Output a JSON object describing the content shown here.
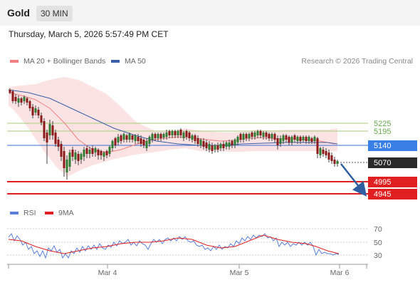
{
  "header": {
    "title": "Gold",
    "timeframe": "30 MIN"
  },
  "datetime": "Thursday, March 5, 2026 5:57:49 PM CET",
  "legend": {
    "ma20": {
      "label": "MA 20 + Bollinger Bands",
      "color": "#f08080"
    },
    "ma50": {
      "label": "MA 50",
      "color": "#3a5ea8"
    },
    "rsi": {
      "label": "RSI",
      "color": "#5b7fd6"
    },
    "ma9": {
      "label": "9MA",
      "color": "#e02020"
    }
  },
  "credit": "Research © 2026 Trading Central",
  "price_levels": {
    "resistance2": "5225",
    "resistance1": "5195",
    "pivot": "5140",
    "current": "5070",
    "support1": "4995",
    "support2": "4945"
  },
  "rsi_ticks": [
    "70",
    "50",
    "30"
  ],
  "x_labels": [
    "Mar 4",
    "Mar 5",
    "Mar 6"
  ]
}
